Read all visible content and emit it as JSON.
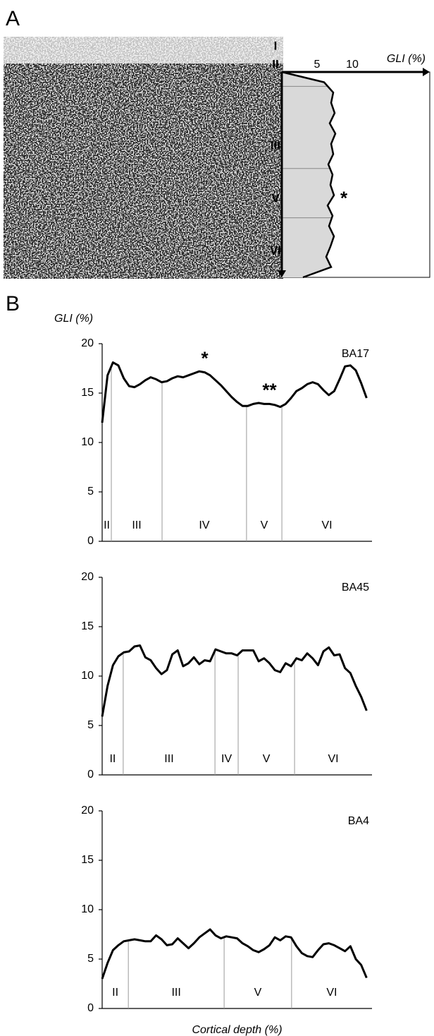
{
  "panel_labels": [
    "A",
    "B"
  ],
  "chart_data": [
    {
      "type": "depth_profile",
      "x_label": "GLI (%)",
      "xlim": [
        0,
        21
      ],
      "xticks": [
        5,
        10
      ],
      "depth_lim": [
        0,
        100
      ],
      "color": "#000000",
      "fill": "#d9d9d9",
      "depth": [
        0,
        5,
        10,
        15,
        20,
        25,
        30,
        35,
        40,
        45,
        50,
        55,
        60,
        65,
        70,
        75,
        80,
        85,
        90,
        95,
        100
      ],
      "values": [
        0,
        6.0,
        7.3,
        7.0,
        7.5,
        6.8,
        7.6,
        7.0,
        7.3,
        6.6,
        7.2,
        6.9,
        7.4,
        6.5,
        7.2,
        6.7,
        7.4,
        6.9,
        6.3,
        7.0,
        3.0
      ],
      "layers": [
        "I",
        "II",
        "III",
        "V",
        "VI"
      ],
      "layer_boundaries": [
        7,
        47,
        71
      ],
      "annotations": [
        {
          "text": "*",
          "depth": 60
        }
      ]
    },
    {
      "type": "line",
      "title": "BA17",
      "y_label": "GLI (%)",
      "color": "#000000",
      "xlim": [
        0,
        100
      ],
      "ylim": [
        0,
        20
      ],
      "yticks": [
        0,
        5,
        10,
        15,
        20
      ],
      "x": [
        0,
        2,
        4,
        6,
        8,
        10,
        12,
        14,
        16,
        18,
        20,
        22,
        24,
        26,
        28,
        30,
        32,
        34,
        36,
        38,
        40,
        42,
        44,
        46,
        48,
        50,
        52,
        54,
        56,
        58,
        60,
        62,
        64,
        66,
        68,
        70,
        72,
        74,
        76,
        78,
        80,
        82,
        84,
        86,
        88,
        90,
        92,
        94,
        96,
        98
      ],
      "values": [
        12,
        16.8,
        18.1,
        17.8,
        16.5,
        15.7,
        15.6,
        15.9,
        16.3,
        16.6,
        16.4,
        16.1,
        16.2,
        16.5,
        16.7,
        16.6,
        16.8,
        17.0,
        17.2,
        17.1,
        16.8,
        16.3,
        15.8,
        15.2,
        14.6,
        14.1,
        13.7,
        13.7,
        13.9,
        14.0,
        13.9,
        13.9,
        13.8,
        13.6,
        13.9,
        14.5,
        15.2,
        15.5,
        15.9,
        16.1,
        15.9,
        15.3,
        14.8,
        15.2,
        16.4,
        17.7,
        17.8,
        17.3,
        16.0,
        14.5
      ],
      "layers": [
        "II",
        "III",
        "IV",
        "V",
        "VI"
      ],
      "layer_boundaries": [
        3.4,
        22.2,
        53.5,
        66.6
      ],
      "annotations": [
        {
          "text": "*",
          "x": 38
        },
        {
          "text": "**",
          "x": 62
        }
      ]
    },
    {
      "type": "line",
      "title": "BA45",
      "color": "#000000",
      "xlim": [
        0,
        100
      ],
      "ylim": [
        0,
        20
      ],
      "yticks": [
        0,
        5,
        10,
        15,
        20
      ],
      "x": [
        0,
        2,
        4,
        6,
        8,
        10,
        12,
        14,
        16,
        18,
        20,
        22,
        24,
        26,
        28,
        30,
        32,
        34,
        36,
        38,
        40,
        42,
        44,
        46,
        48,
        50,
        52,
        54,
        56,
        58,
        60,
        62,
        64,
        66,
        68,
        70,
        72,
        74,
        76,
        78,
        80,
        82,
        84,
        86,
        88,
        90,
        92,
        94,
        96,
        98
      ],
      "values": [
        5.9,
        9.0,
        11.1,
        12.0,
        12.4,
        12.5,
        13.0,
        13.1,
        11.9,
        11.6,
        10.8,
        10.2,
        10.6,
        12.2,
        12.6,
        11.0,
        11.3,
        11.9,
        11.2,
        11.6,
        11.5,
        12.7,
        12.5,
        12.3,
        12.3,
        12.1,
        12.6,
        12.6,
        12.6,
        11.5,
        11.8,
        11.3,
        10.6,
        10.4,
        11.3,
        11.0,
        11.8,
        11.6,
        12.3,
        11.8,
        11.1,
        12.5,
        12.9,
        12.1,
        12.2,
        10.8,
        10.3,
        9.0,
        7.9,
        6.5
      ],
      "layers": [
        "II",
        "III",
        "IV",
        "V",
        "VI"
      ],
      "layer_boundaries": [
        7.8,
        41.8,
        50.4,
        71.3
      ]
    },
    {
      "type": "line",
      "title": "BA4",
      "x_label": "Cortical depth (%)",
      "color": "#000000",
      "xlim": [
        0,
        100
      ],
      "ylim": [
        0,
        20
      ],
      "yticks": [
        0,
        5,
        10,
        15,
        20
      ],
      "x": [
        0,
        2,
        4,
        6,
        8,
        10,
        12,
        14,
        16,
        18,
        20,
        22,
        24,
        26,
        28,
        30,
        32,
        34,
        36,
        38,
        40,
        42,
        44,
        46,
        48,
        50,
        52,
        54,
        56,
        58,
        60,
        62,
        64,
        66,
        68,
        70,
        72,
        74,
        76,
        78,
        80,
        82,
        84,
        86,
        88,
        90,
        92,
        94,
        96,
        98
      ],
      "values": [
        3.0,
        4.6,
        5.9,
        6.4,
        6.8,
        6.9,
        7.0,
        6.9,
        6.8,
        6.8,
        7.4,
        7.0,
        6.4,
        6.5,
        7.1,
        6.6,
        6.1,
        6.6,
        7.2,
        7.6,
        8.0,
        7.4,
        7.1,
        7.3,
        7.2,
        7.1,
        6.6,
        6.3,
        5.9,
        5.7,
        6.0,
        6.4,
        7.2,
        6.9,
        7.3,
        7.2,
        6.3,
        5.6,
        5.3,
        5.2,
        5.9,
        6.5,
        6.6,
        6.4,
        6.1,
        5.8,
        6.3,
        5.0,
        4.4,
        3.1
      ],
      "layers": [
        "II",
        "III",
        "V",
        "VI"
      ],
      "layer_boundaries": [
        9.7,
        45.2,
        70.2
      ]
    }
  ]
}
